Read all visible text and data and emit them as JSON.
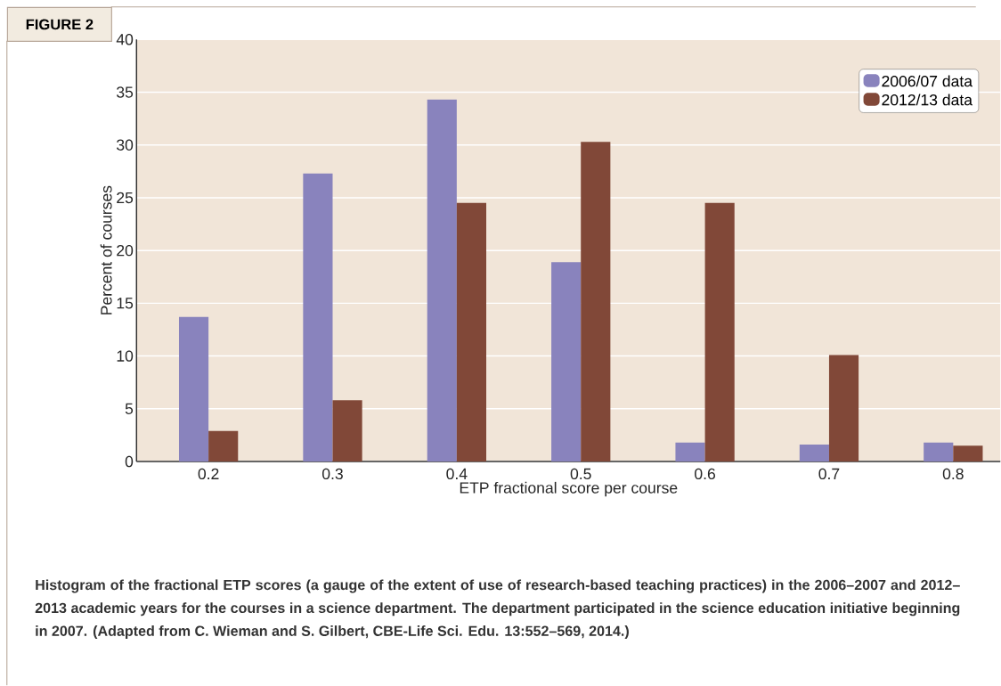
{
  "chart_data": {
    "type": "bar",
    "xlabel": "ETP fractional score per course",
    "ylabel": "Percent of courses",
    "categories": [
      "0.2",
      "0.3",
      "0.4",
      "0.5",
      "0.6",
      "0.7",
      "0.8"
    ],
    "series": [
      {
        "name": "2006/07 data",
        "color": "#8983bd",
        "values": [
          13.7,
          27.3,
          34.3,
          18.9,
          1.8,
          1.6,
          1.8
        ]
      },
      {
        "name": "2012/13 data",
        "color": "#814838",
        "values": [
          2.9,
          5.8,
          24.5,
          30.3,
          24.5,
          10.1,
          1.5
        ]
      }
    ],
    "ylim": [
      0,
      40
    ],
    "yticks": [
      0,
      5,
      10,
      15,
      20,
      25,
      30,
      35,
      40
    ],
    "grid": "y",
    "legend": "top right",
    "annotations": [
      "FIGURE 2",
      "Histogram of the fractional ETP scores (a gauge of the extent of use of research-based teaching practices) in the 2006–2007 and 2012–2013 academic years for the courses in a science department. The department participated in the science education initiative beginning in 2007. (Adapted from C. Wieman and S. Gilbert, CBE-Life Sci. Edu. 13:552–569, 2014.)"
    ]
  }
}
